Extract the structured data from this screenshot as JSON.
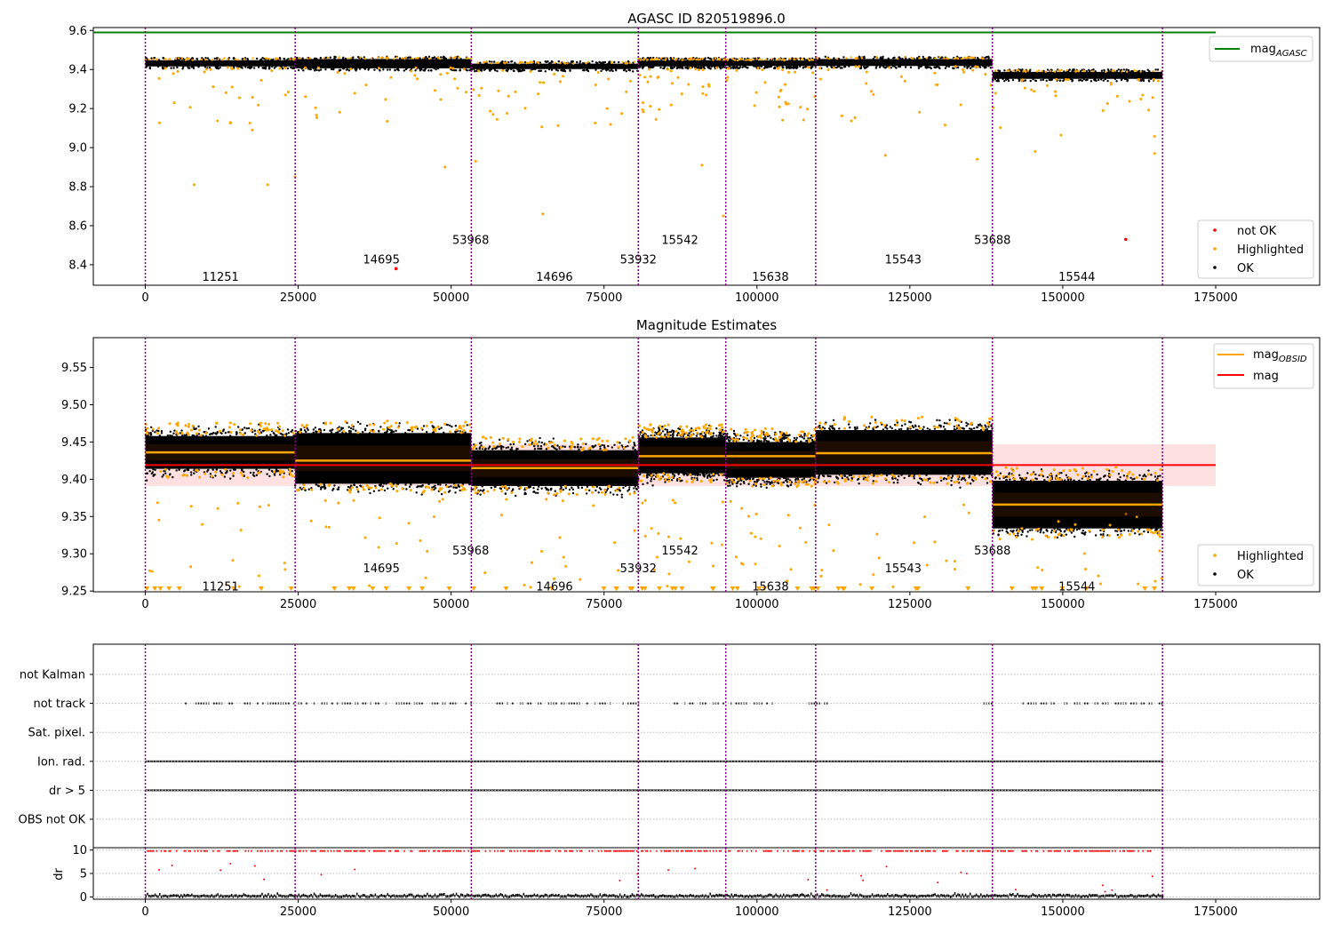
{
  "colors": {
    "ok": "#000000",
    "highlighted": "#ffa500",
    "not_ok": "#ff0000",
    "mag_agasc": "#008000",
    "mag_obsid": "#ffa500",
    "mag": "#ff0000",
    "obsid_boundary": "#800080",
    "mag_band": "#ffcccc"
  },
  "chart_data": [
    {
      "type": "scatter",
      "title": "AGASC ID 820519896.0",
      "xlim": [
        -8500,
        192000
      ],
      "ylim": [
        8.295,
        9.615
      ],
      "xticks": [
        0,
        25000,
        50000,
        75000,
        100000,
        125000,
        150000,
        175000
      ],
      "xtick_labels": [
        "0",
        "25000",
        "50000",
        "75000",
        "100000",
        "125000",
        "150000",
        "175000"
      ],
      "yticks": [
        8.4,
        8.6,
        8.8,
        9.0,
        9.2,
        9.4,
        9.6
      ],
      "ytick_labels": [
        "8.4",
        "8.6",
        "8.8",
        "9.0",
        "9.2",
        "9.4",
        "9.6"
      ],
      "mag_agasc": 9.59,
      "legend_top": [
        {
          "name": "mag",
          "subscript": "AGASC"
        }
      ],
      "legend_bottom": [
        {
          "name": "not OK"
        },
        {
          "name": "Highlighted"
        },
        {
          "name": "OK"
        }
      ],
      "not_ok_points": [
        [
          41000,
          8.38
        ],
        [
          160300,
          8.53
        ]
      ],
      "obsid_labels": [
        {
          "text": "11251",
          "x": 12300,
          "y": 8.34
        },
        {
          "text": "14695",
          "x": 38600,
          "y": 8.43
        },
        {
          "text": "53968",
          "x": 53200,
          "y": 8.53
        },
        {
          "text": "14696",
          "x": 66900,
          "y": 8.34
        },
        {
          "text": "53932",
          "x": 80600,
          "y": 8.43
        },
        {
          "text": "15542",
          "x": 87400,
          "y": 8.53
        },
        {
          "text": "15638",
          "x": 102200,
          "y": 8.34
        },
        {
          "text": "15543",
          "x": 123900,
          "y": 8.43
        },
        {
          "text": "53688",
          "x": 138500,
          "y": 8.53
        },
        {
          "text": "15544",
          "x": 152300,
          "y": 8.34
        }
      ]
    },
    {
      "type": "scatter",
      "title": "Magnitude Estimates",
      "xlim": [
        -8500,
        192000
      ],
      "ylim": [
        9.249,
        9.59
      ],
      "xticks": [
        0,
        25000,
        50000,
        75000,
        100000,
        125000,
        150000,
        175000
      ],
      "xtick_labels": [
        "0",
        "25000",
        "50000",
        "75000",
        "100000",
        "125000",
        "150000",
        "175000"
      ],
      "yticks": [
        9.25,
        9.3,
        9.35,
        9.4,
        9.45,
        9.5,
        9.55
      ],
      "ytick_labels": [
        "9.25",
        "9.30",
        "9.35",
        "9.40",
        "9.45",
        "9.50",
        "9.55"
      ],
      "mag": 9.419,
      "mag_band": [
        9.391,
        9.447
      ],
      "legend_top": [
        {
          "name": "mag",
          "subscript": "OBSID"
        },
        {
          "name": "mag"
        }
      ],
      "legend_bottom": [
        {
          "name": "Highlighted"
        },
        {
          "name": "OK"
        }
      ],
      "obsid_segments": [
        {
          "start": 0,
          "end": 24500,
          "mag": 9.436,
          "center": 9.436,
          "spread": 0.022
        },
        {
          "start": 24500,
          "end": 53300,
          "mag": 9.425,
          "center": 9.428,
          "spread": 0.034
        },
        {
          "start": 53300,
          "end": 80600,
          "mag": 9.415,
          "center": 9.415,
          "spread": 0.024
        },
        {
          "start": 80600,
          "end": 94900,
          "mag": 9.431,
          "center": 9.432,
          "spread": 0.024
        },
        {
          "start": 94900,
          "end": 109600,
          "mag": 9.431,
          "center": 9.426,
          "spread": 0.024
        },
        {
          "start": 109600,
          "end": 138500,
          "mag": 9.435,
          "center": 9.436,
          "spread": 0.03
        },
        {
          "start": 138500,
          "end": 166300,
          "mag": 9.366,
          "center": 9.366,
          "spread": 0.032
        }
      ],
      "obsid_labels": [
        {
          "text": "11251",
          "x": 12300,
          "y": 9.257
        },
        {
          "text": "14695",
          "x": 38600,
          "y": 9.281
        },
        {
          "text": "53968",
          "x": 53200,
          "y": 9.305
        },
        {
          "text": "14696",
          "x": 66900,
          "y": 9.257
        },
        {
          "text": "53932",
          "x": 80600,
          "y": 9.281
        },
        {
          "text": "15542",
          "x": 87400,
          "y": 9.305
        },
        {
          "text": "15638",
          "x": 102200,
          "y": 9.257
        },
        {
          "text": "15543",
          "x": 123900,
          "y": 9.281
        },
        {
          "text": "53688",
          "x": 138500,
          "y": 9.305
        },
        {
          "text": "15544",
          "x": 152300,
          "y": 9.257
        }
      ]
    },
    {
      "type": "scatter",
      "title": "",
      "xlim": [
        -8500,
        192000
      ],
      "categories": [
        "not Kalman",
        "not track",
        "Sat. pixel.",
        "Ion. rad.",
        "dr > 5",
        "OBS not OK"
      ],
      "flag_coverage": {
        "not Kalman": [],
        "not track": [
          [
            6500,
            53500
          ],
          [
            57000,
            76000
          ],
          [
            78000,
            80600
          ],
          [
            86000,
            103000
          ],
          [
            108000,
            113000
          ],
          [
            137000,
            139000
          ],
          [
            143000,
            166300
          ]
        ],
        "Sat. pixel.": [],
        "Ion. rad.": [
          [
            0,
            166300
          ]
        ],
        "dr > 5": [
          [
            0,
            166300
          ]
        ],
        "OBS not OK": []
      }
    },
    {
      "type": "scatter",
      "title": "",
      "ylabel": "dr",
      "xlim": [
        -8500,
        192000
      ],
      "ylim": [
        -0.5,
        10.5
      ],
      "xticks": [
        0,
        25000,
        50000,
        75000,
        100000,
        125000,
        150000,
        175000
      ],
      "xtick_labels": [
        "0",
        "25000",
        "50000",
        "75000",
        "100000",
        "125000",
        "150000",
        "175000"
      ],
      "yticks": [
        0,
        5,
        10
      ],
      "ytick_labels": [
        "0",
        "5",
        "10"
      ],
      "dr_high_value": 9.8
    }
  ],
  "obsid_boundaries": [
    0,
    24500,
    53300,
    80600,
    94900,
    109600,
    138500,
    166300
  ]
}
